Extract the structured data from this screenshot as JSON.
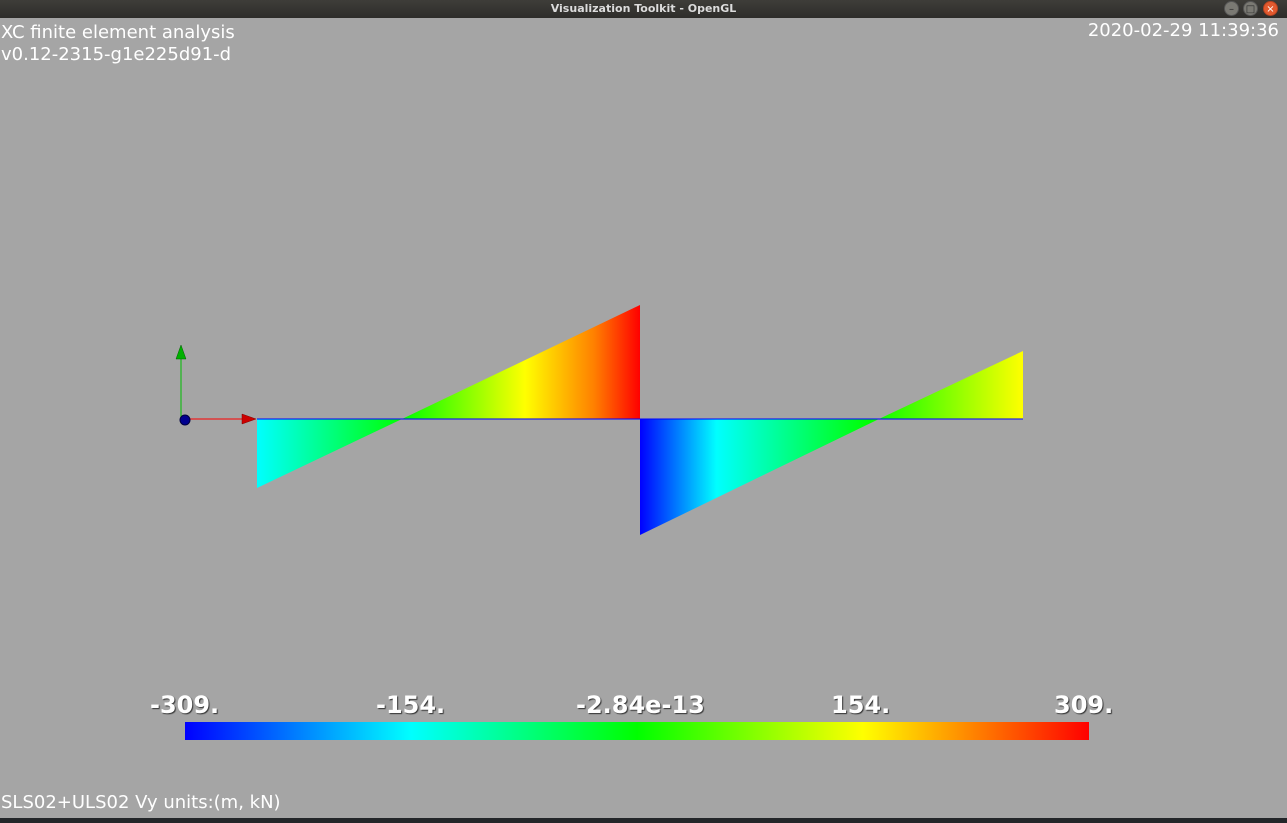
{
  "window": {
    "title": "Visualization Toolkit - OpenGL"
  },
  "overlay": {
    "app_name": "XC finite element analysis",
    "version": "v0.12-2315-g1e225d91-d",
    "timestamp": "2020-02-29 11:39:36",
    "caption": "SLS02+ULS02 Vy units:(m, kN)"
  },
  "scalar_bar": {
    "labels": [
      "-309.",
      "-154.",
      "-2.84e-13",
      "154.",
      "309."
    ],
    "min": -309,
    "max": 309
  },
  "diagram": {
    "quantity": "Vy",
    "segments": [
      {
        "x": [
          0,
          1
        ],
        "v": [
          -140,
          230
        ]
      },
      {
        "x": [
          1,
          2
        ],
        "v": [
          -230,
          140
        ]
      }
    ]
  },
  "colors": {
    "background": "#a5a5a5",
    "axis_x": "#ff0000",
    "axis_y": "#00c000",
    "origin": "#000080",
    "beam": "#0000ff"
  }
}
